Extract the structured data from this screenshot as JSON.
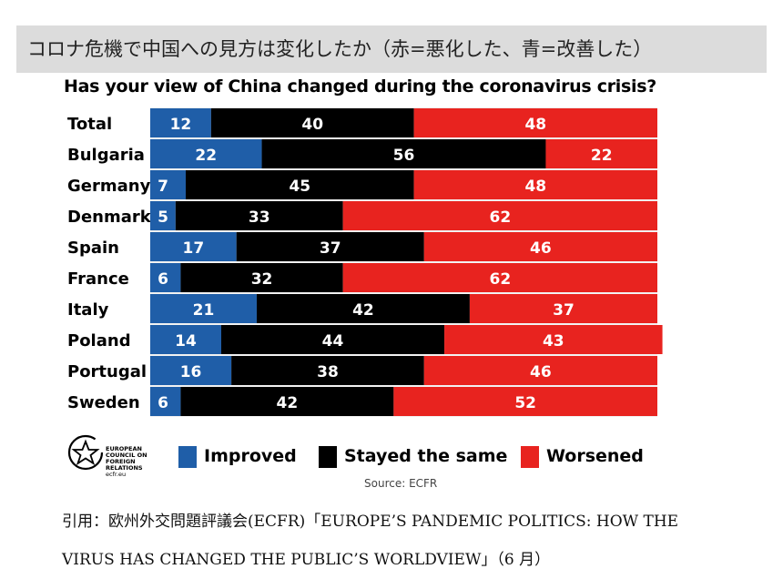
{
  "header": {
    "text": "コロナ危機で中国への見方は変化したか（赤=悪化した、青=改善した）"
  },
  "chart_data": {
    "type": "bar",
    "stacked": true,
    "orientation": "horizontal",
    "title": "Has your view of China changed during the coronavirus crisis?",
    "categories": [
      "Total",
      "Bulgaria",
      "Germany",
      "Denmark",
      "Spain",
      "France",
      "Italy",
      "Poland",
      "Portugal",
      "Sweden"
    ],
    "series": [
      {
        "name": "Improved",
        "color": "#1f5ea8",
        "values": [
          12,
          22,
          7,
          5,
          17,
          6,
          21,
          14,
          16,
          6
        ]
      },
      {
        "name": "Stayed the same",
        "color": "#000000",
        "values": [
          40,
          56,
          45,
          33,
          37,
          32,
          42,
          44,
          38,
          42
        ]
      },
      {
        "name": "Worsened",
        "color": "#e8231f",
        "values": [
          48,
          22,
          48,
          62,
          46,
          62,
          37,
          43,
          46,
          52
        ]
      }
    ],
    "xlim": [
      0,
      100
    ],
    "legend": "bottom",
    "source": "Source: ECFR"
  },
  "logo": {
    "text": "EUROPEAN COUNCIL ON FOREIGN RELATIONS",
    "url": "ecfr.eu"
  },
  "citation": {
    "line1": "引用：欧州外交問題評議会(ECFR)「EUROPE’S PANDEMIC POLITICS: HOW THE",
    "line2": "VIRUS HAS CHANGED THE PUBLIC’S WORLDVIEW」（6 月）"
  }
}
